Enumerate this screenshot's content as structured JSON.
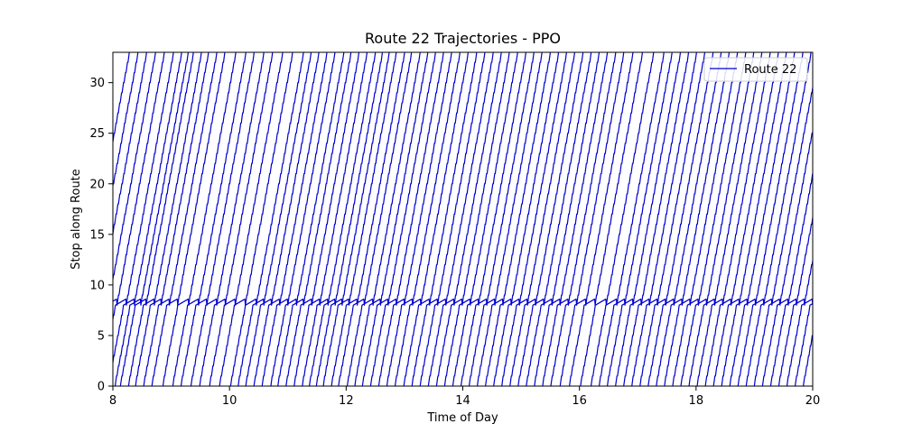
{
  "chart_data": {
    "type": "line",
    "title": "Route 22 Trajectories - PPO",
    "xlabel": "Time of Day",
    "ylabel": "Stop along Route",
    "xlim": [
      8,
      20
    ],
    "ylim": [
      0,
      33
    ],
    "xticks": [
      8,
      10,
      12,
      14,
      16,
      18,
      20
    ],
    "yticks": [
      0,
      5,
      10,
      15,
      20,
      25,
      30
    ],
    "grid": false,
    "legend": {
      "position": "upper-right",
      "entries": [
        {
          "label": "Route 22",
          "color": "#0000cc"
        }
      ]
    },
    "series_color": "#0000cc",
    "series_name": "Route 22",
    "trajectory_model": {
      "stops": 33,
      "trip_duration_hours": 1.26,
      "dwell_stop": 9,
      "dwell_hours": 0.18
    },
    "trip_start_times": [
      7.02,
      7.17,
      7.32,
      7.47,
      7.62,
      7.78,
      7.92,
      8.03,
      8.12,
      8.26,
      8.38,
      8.52,
      8.66,
      8.85,
      9.02,
      9.16,
      9.33,
      9.48,
      9.65,
      9.82,
      10.01,
      10.14,
      10.27,
      10.41,
      10.55,
      10.7,
      10.82,
      10.96,
      11.1,
      11.24,
      11.36,
      11.48,
      11.6,
      11.74,
      11.86,
      12.01,
      12.14,
      12.27,
      12.41,
      12.55,
      12.69,
      12.83,
      12.98,
      13.12,
      13.26,
      13.4,
      13.54,
      13.68,
      13.82,
      13.96,
      14.1,
      14.24,
      14.38,
      14.52,
      14.66,
      14.8,
      14.94,
      15.08,
      15.22,
      15.36,
      15.5,
      15.66,
      15.82,
      16.01,
      16.19,
      16.33,
      16.47,
      16.61,
      16.75,
      16.89,
      17.03,
      17.17,
      17.31,
      17.45,
      17.59,
      17.73,
      17.87,
      18.01,
      18.15,
      18.29,
      18.43,
      18.57,
      18.71,
      18.85,
      18.99,
      19.13,
      19.27,
      19.41,
      19.55,
      19.69,
      19.83
    ]
  }
}
